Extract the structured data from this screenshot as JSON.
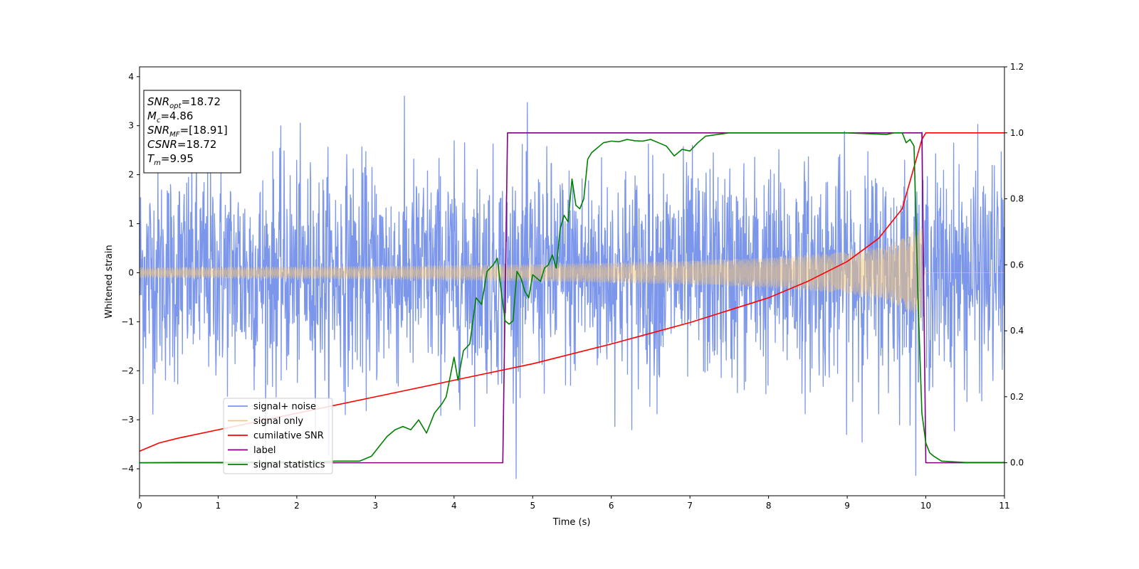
{
  "chart_data": {
    "type": "line",
    "xlabel": "Time (s)",
    "ylabel": "Whitened strain",
    "xlim": [
      0,
      11
    ],
    "ylim": [
      -4.55,
      4.2
    ],
    "y2lim": [
      -0.1,
      1.2
    ],
    "grid": false,
    "x_ticks": [
      0,
      1,
      2,
      3,
      4,
      5,
      6,
      7,
      8,
      9,
      10,
      11
    ],
    "y_ticks": [
      -4,
      -3,
      -2,
      -1,
      0,
      1,
      2,
      3,
      4
    ],
    "y2_ticks": [
      "0.0",
      "0.2",
      "0.4",
      "0.6",
      "0.8",
      "1.0",
      "1.2"
    ],
    "annotation_box": {
      "position": "top-left",
      "lines": [
        {
          "base": "SNR",
          "sub": "opt",
          "rest": "=18.72"
        },
        {
          "base": "M",
          "sub": "c",
          "rest": "=4.86"
        },
        {
          "base": "SNR",
          "sub": "MF",
          "rest": "=[18.91]"
        },
        {
          "base": "CSNR",
          "sub": "",
          "rest": "=18.72"
        },
        {
          "base": "T",
          "sub": "m",
          "rest": "=9.95"
        }
      ]
    },
    "legend": {
      "placement": "lower-left",
      "entries": [
        {
          "label": "signal+ noise",
          "color": "#7b96ea"
        },
        {
          "label": "signal only",
          "color": "#f5c97a"
        },
        {
          "label": "cumilative SNR",
          "color": "#ff0000"
        },
        {
          "label": "label",
          "color": "#800080"
        },
        {
          "label": "signal statistics",
          "color": "#008000"
        }
      ]
    },
    "series": [
      {
        "name": "signal+ noise",
        "axis": "left",
        "color": "#7b96ea",
        "kind": "noise",
        "amplitude_range": [
          -4.2,
          3.85
        ]
      },
      {
        "name": "signal only",
        "axis": "left",
        "color": "#f5c97a",
        "kind": "chirp",
        "x": [
          0,
          1,
          2,
          3,
          4,
          5,
          6,
          7,
          8,
          9,
          9.5,
          9.8,
          9.95,
          10,
          11
        ],
        "envelope": [
          0.1,
          0.11,
          0.12,
          0.13,
          0.15,
          0.17,
          0.2,
          0.24,
          0.3,
          0.42,
          0.55,
          0.8,
          1.0,
          0,
          0
        ]
      },
      {
        "name": "cumilative SNR",
        "axis": "right",
        "color": "#ff0000",
        "x": [
          0,
          0.25,
          0.5,
          1,
          2,
          3,
          4,
          5,
          6,
          7,
          8,
          8.5,
          9,
          9.4,
          9.7,
          9.95,
          10,
          11
        ],
        "y": [
          0.035,
          0.06,
          0.075,
          0.1,
          0.15,
          0.2,
          0.25,
          0.3,
          0.36,
          0.425,
          0.5,
          0.55,
          0.61,
          0.68,
          0.77,
          0.98,
          1.0,
          1.0
        ]
      },
      {
        "name": "label",
        "axis": "right",
        "color": "#800080",
        "x": [
          0,
          4.62,
          4.68,
          9.95,
          10.0,
          11
        ],
        "y": [
          0,
          0,
          1,
          1,
          0,
          0
        ]
      },
      {
        "name": "signal statistics",
        "axis": "right",
        "color": "#008000",
        "x": [
          0,
          0.5,
          1,
          2,
          2.5,
          2.8,
          2.95,
          3.05,
          3.15,
          3.25,
          3.35,
          3.45,
          3.55,
          3.65,
          3.75,
          3.85,
          3.9,
          4.0,
          4.05,
          4.12,
          4.2,
          4.28,
          4.35,
          4.42,
          4.5,
          4.55,
          4.6,
          4.65,
          4.7,
          4.75,
          4.8,
          4.85,
          4.9,
          4.95,
          5.0,
          5.05,
          5.1,
          5.15,
          5.2,
          5.25,
          5.3,
          5.35,
          5.4,
          5.45,
          5.5,
          5.55,
          5.6,
          5.65,
          5.7,
          5.75,
          5.8,
          5.85,
          5.9,
          6.0,
          6.1,
          6.2,
          6.3,
          6.4,
          6.5,
          6.6,
          6.7,
          6.8,
          6.9,
          7.0,
          7.1,
          7.2,
          7.5,
          8.0,
          8.5,
          9.0,
          9.5,
          9.6,
          9.7,
          9.75,
          9.8,
          9.85,
          9.9,
          9.95,
          10.0,
          10.05,
          10.1,
          10.2,
          10.5,
          11
        ],
        "y": [
          0,
          0.001,
          0.001,
          0.002,
          0.005,
          0.005,
          0.02,
          0.05,
          0.08,
          0.1,
          0.11,
          0.1,
          0.13,
          0.09,
          0.15,
          0.18,
          0.2,
          0.32,
          0.25,
          0.34,
          0.36,
          0.5,
          0.48,
          0.58,
          0.6,
          0.62,
          0.52,
          0.43,
          0.42,
          0.43,
          0.58,
          0.56,
          0.52,
          0.5,
          0.57,
          0.56,
          0.55,
          0.59,
          0.6,
          0.63,
          0.59,
          0.71,
          0.75,
          0.73,
          0.86,
          0.78,
          0.77,
          0.8,
          0.92,
          0.94,
          0.95,
          0.96,
          0.97,
          0.975,
          0.973,
          0.98,
          0.976,
          0.975,
          0.98,
          0.97,
          0.96,
          0.93,
          0.95,
          0.945,
          0.97,
          0.99,
          1.0,
          1.0,
          1.0,
          1.0,
          0.995,
          1.0,
          1.0,
          0.97,
          0.98,
          0.96,
          0.5,
          0.15,
          0.06,
          0.03,
          0.02,
          0.005,
          0.001,
          0.001
        ]
      }
    ]
  }
}
